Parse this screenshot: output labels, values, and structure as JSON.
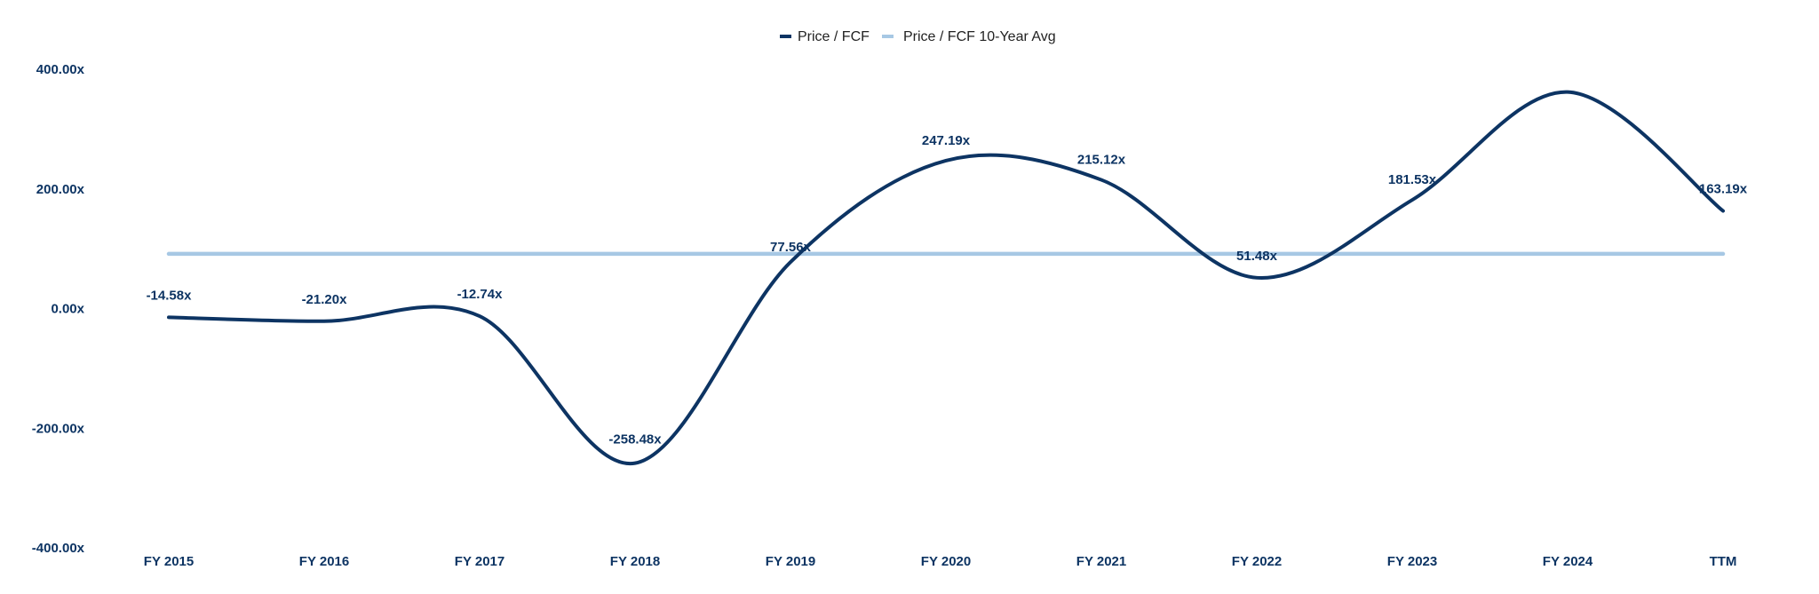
{
  "chart_data": {
    "type": "line",
    "categories": [
      "FY 2015",
      "FY 2016",
      "FY 2017",
      "FY 2018",
      "FY 2019",
      "FY 2020",
      "FY 2021",
      "FY 2022",
      "FY 2023",
      "FY 2024",
      "TTM"
    ],
    "series": [
      {
        "name": "Price / FCF",
        "color": "#0d3463",
        "values": [
          -14.58,
          -21.2,
          -12.74,
          -258.48,
          77.56,
          247.19,
          215.12,
          51.48,
          181.53,
          362.0,
          163.19
        ],
        "data_labels": [
          "-14.58x",
          "-21.20x",
          "-12.74x",
          "-258.48x",
          "77.56x",
          "247.19x",
          "215.12x",
          "51.48x",
          "181.53x",
          "",
          "163.19x"
        ]
      },
      {
        "name": "Price / FCF 10-Year Avg",
        "color": "#a7c8e4",
        "values": [
          91.4,
          91.4,
          91.4,
          91.4,
          91.4,
          91.4,
          91.4,
          91.4,
          91.4,
          91.4,
          91.4
        ]
      }
    ],
    "y_ticks": [
      "400.00x",
      "200.00x",
      "0.00x",
      "-200.00x",
      "-400.00x"
    ],
    "y_tick_values": [
      400,
      200,
      0,
      -200,
      -400
    ],
    "ylim": [
      -400,
      400
    ],
    "legend_position": "top-center",
    "grid": false,
    "title": "",
    "xlabel": "",
    "ylabel": ""
  }
}
